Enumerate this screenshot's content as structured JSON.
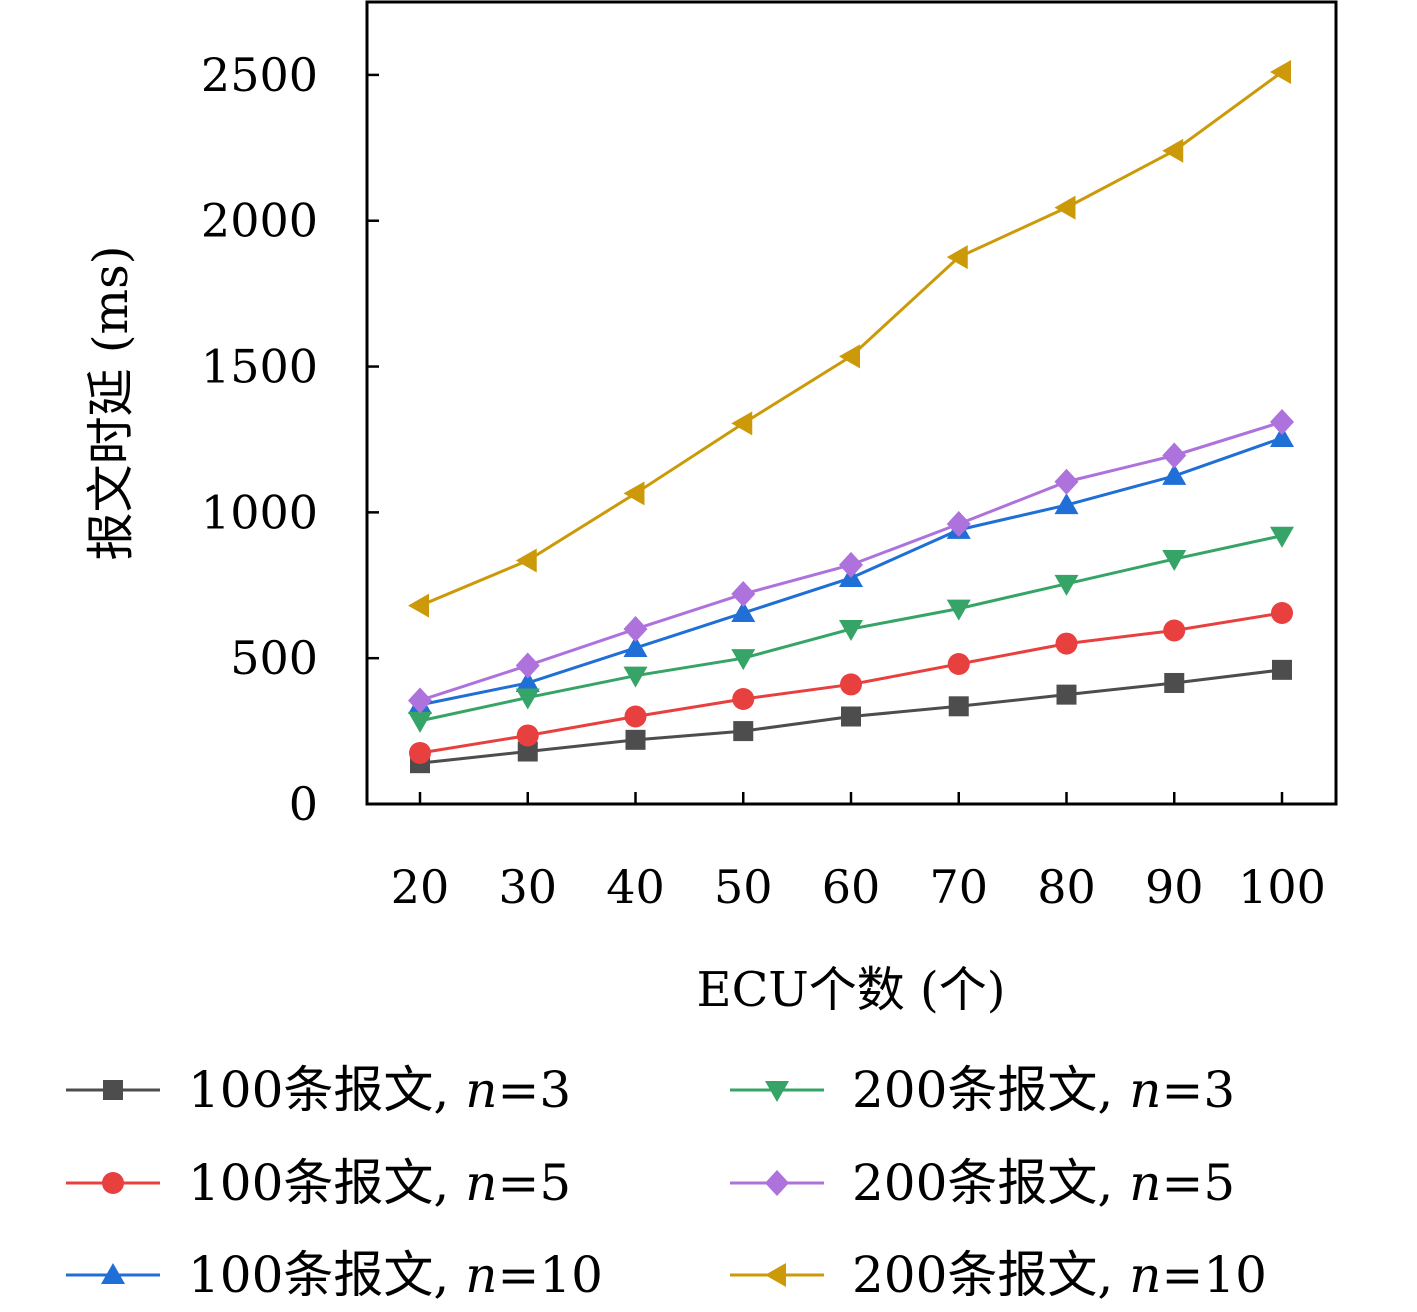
{
  "chart_data": {
    "type": "line",
    "title": "",
    "xlabel": "ECU个数 (个)",
    "ylabel": "报文时延 (ms)",
    "x": [
      20,
      30,
      40,
      50,
      60,
      70,
      80,
      90,
      100
    ],
    "x_tick_labels": [
      "20",
      "30",
      "40",
      "50",
      "60",
      "70",
      "80",
      "90",
      "100"
    ],
    "y_ticks": [
      0,
      500,
      1000,
      1500,
      2000,
      2500
    ],
    "y_tick_labels": [
      "0",
      "500",
      "1000",
      "1500",
      "2000",
      "2500"
    ],
    "ylim": [
      0,
      2750
    ],
    "grid": false,
    "legend_position": "bottom",
    "series": [
      {
        "name": "100条报文, n=3",
        "label_prefix": "100条报文, ",
        "label_var": "n",
        "label_suffix": "=3",
        "color": "#4d4d4d",
        "marker": "square",
        "values": [
          140,
          180,
          220,
          250,
          300,
          335,
          375,
          415,
          460
        ]
      },
      {
        "name": "100条报文, n=5",
        "label_prefix": "100条报文, ",
        "label_var": "n",
        "label_suffix": "=5",
        "color": "#e8403f",
        "marker": "circle",
        "values": [
          175,
          235,
          300,
          360,
          410,
          480,
          550,
          595,
          655
        ]
      },
      {
        "name": "100条报文, n=10",
        "label_prefix": "100条报文, ",
        "label_var": "n",
        "label_suffix": "=10",
        "color": "#1f6fd6",
        "marker": "triangle-up",
        "values": [
          340,
          415,
          535,
          655,
          775,
          940,
          1025,
          1125,
          1255
        ]
      },
      {
        "name": "200条报文, n=3",
        "label_prefix": "200条报文, ",
        "label_var": "n",
        "label_suffix": "=3",
        "color": "#36a467",
        "marker": "triangle-down",
        "values": [
          285,
          365,
          440,
          500,
          600,
          670,
          755,
          840,
          920
        ]
      },
      {
        "name": "200条报文, n=5",
        "label_prefix": "200条报文, ",
        "label_var": "n",
        "label_suffix": "=5",
        "color": "#ad72dc",
        "marker": "diamond",
        "values": [
          355,
          475,
          600,
          720,
          820,
          960,
          1105,
          1195,
          1310
        ]
      },
      {
        "name": "200条报文, n=10",
        "label_prefix": "200条报文, ",
        "label_var": "n",
        "label_suffix": "=10",
        "color": "#cc9a08",
        "marker": "triangle-left",
        "values": [
          680,
          835,
          1065,
          1305,
          1535,
          1875,
          2045,
          2240,
          2510
        ]
      }
    ]
  }
}
